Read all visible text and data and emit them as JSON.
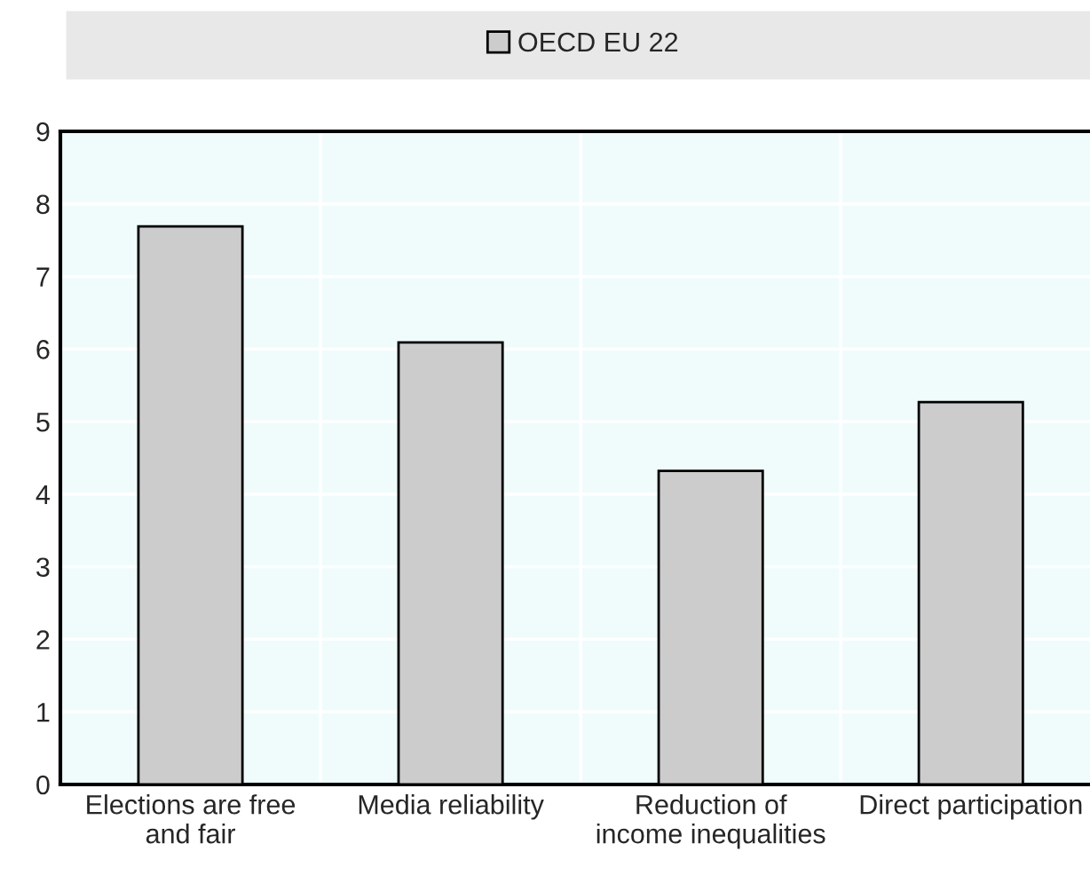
{
  "chart_data": {
    "type": "bar",
    "categories": [
      "Elections are free\nand fair",
      "Media reliability",
      "Reduction of\nincome inequalities",
      "Direct participation"
    ],
    "series": [
      {
        "name": "OECD EU 22",
        "color": "#cccccc",
        "values": [
          7.69,
          6.09,
          4.32,
          5.27
        ]
      }
    ],
    "ylim": [
      0,
      9
    ],
    "yticks": [
      0,
      1,
      2,
      3,
      4,
      5,
      6,
      7,
      8,
      9
    ],
    "grid": true,
    "legend": "top"
  }
}
